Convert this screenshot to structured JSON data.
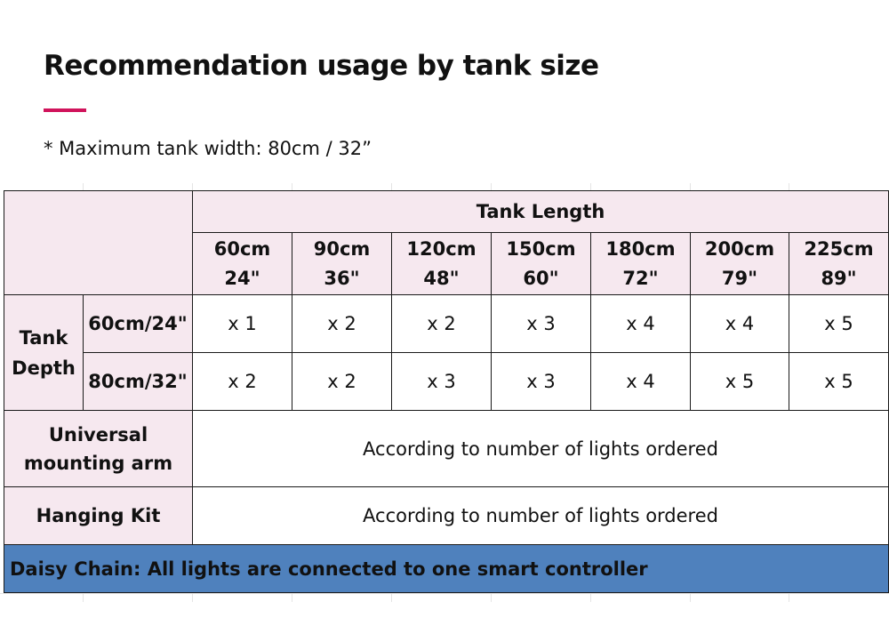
{
  "heading": {
    "title": "Recommendation usage by tank size",
    "accent_color": "#d0135b",
    "note": "* Maximum tank width: 80cm / 32”"
  },
  "table": {
    "length_header": "Tank Length",
    "lengths": [
      {
        "cm": "60cm",
        "in": "24\""
      },
      {
        "cm": "90cm",
        "in": "36\""
      },
      {
        "cm": "120cm",
        "in": "48\""
      },
      {
        "cm": "150cm",
        "in": "60\""
      },
      {
        "cm": "180cm",
        "in": "72\""
      },
      {
        "cm": "200cm",
        "in": "79\""
      },
      {
        "cm": "225cm",
        "in": "89\""
      }
    ],
    "depth_label_line1": "Tank",
    "depth_label_line2": "Depth",
    "depth_rows": [
      {
        "label": "60cm/24\"",
        "values": [
          "x 1",
          "x 2",
          "x 2",
          "x 3",
          "x 4",
          "x 4",
          "x 5"
        ]
      },
      {
        "label": "80cm/32\"",
        "values": [
          "x 2",
          "x 2",
          "x 3",
          "x 3",
          "x 4",
          "x 5",
          "x 5"
        ]
      }
    ],
    "mounting_arm": {
      "label_line1": "Universal",
      "label_line2": "mounting arm",
      "value": "According to number of lights ordered"
    },
    "hanging_kit": {
      "label": "Hanging Kit",
      "value": "According to number of lights ordered"
    },
    "daisy_chain": "Daisy Chain: All lights are connected to one smart controller",
    "colors": {
      "header_fill": "#f6e8ef",
      "footer_fill": "#4f81bd"
    }
  }
}
